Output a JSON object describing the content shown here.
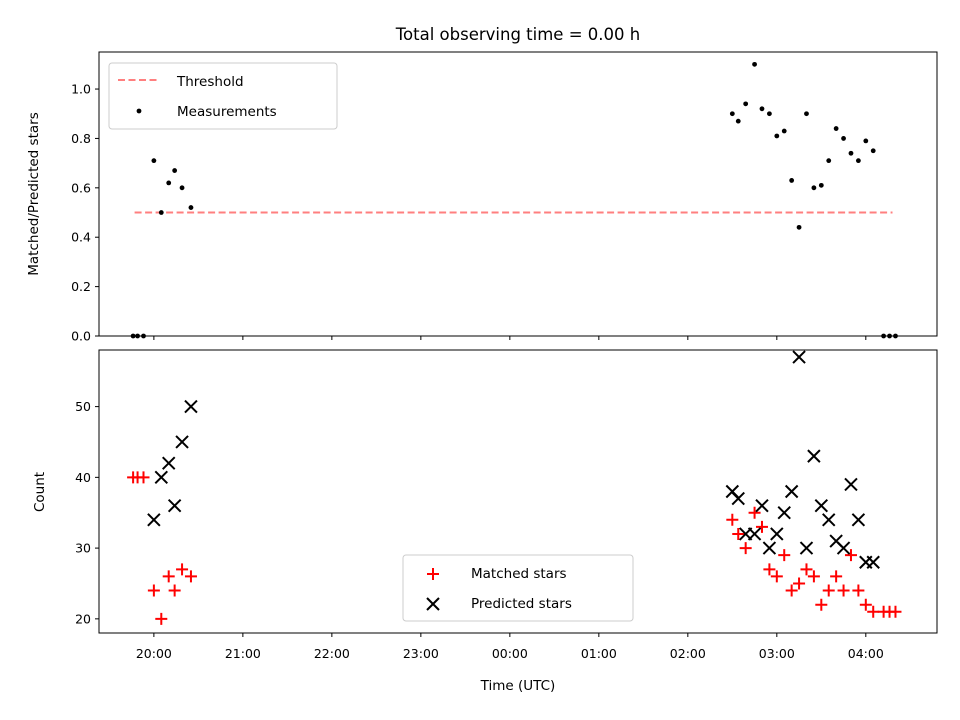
{
  "chart_data": [
    {
      "type": "scatter",
      "title": "Total observing time = 0.00 h",
      "ylabel": "Matched/Predicted stars",
      "xlabel": "",
      "ylim": [
        0,
        1.15
      ],
      "yticks": [
        "0.0",
        "0.2",
        "0.4",
        "0.6",
        "0.8",
        "1.0"
      ],
      "yticks_values": [
        0,
        0.2,
        0.4,
        0.6,
        0.8,
        1.0
      ],
      "x_axis": {
        "type": "time",
        "start": "19:23",
        "end": "04:48"
      },
      "legend": {
        "placement": "top-left",
        "entries": [
          {
            "label": "Threshold",
            "style": "dashed",
            "color": "#ff7f7f"
          },
          {
            "label": "Measurements",
            "style": "dot",
            "color": "#000000"
          }
        ]
      },
      "series": [
        {
          "name": "Threshold",
          "kind": "line",
          "color": "#ff7f7f",
          "points": [
            {
              "x": "19:47",
              "y": 0.5
            },
            {
              "x": "04:18",
              "y": 0.5
            }
          ]
        },
        {
          "name": "Measurements",
          "kind": "dots",
          "color": "#000000",
          "points": [
            {
              "x": "19:46",
              "y": 0.0
            },
            {
              "x": "19:49",
              "y": 0.0
            },
            {
              "x": "19:53",
              "y": 0.0
            },
            {
              "x": "20:00",
              "y": 0.71
            },
            {
              "x": "20:05",
              "y": 0.5
            },
            {
              "x": "20:10",
              "y": 0.62
            },
            {
              "x": "20:14",
              "y": 0.67
            },
            {
              "x": "20:19",
              "y": 0.6
            },
            {
              "x": "20:25",
              "y": 0.52
            },
            {
              "x": "02:30",
              "y": 0.9
            },
            {
              "x": "02:34",
              "y": 0.87
            },
            {
              "x": "02:39",
              "y": 0.94
            },
            {
              "x": "02:45",
              "y": 1.1
            },
            {
              "x": "02:50",
              "y": 0.92
            },
            {
              "x": "02:55",
              "y": 0.9
            },
            {
              "x": "03:00",
              "y": 0.81
            },
            {
              "x": "03:05",
              "y": 0.83
            },
            {
              "x": "03:10",
              "y": 0.63
            },
            {
              "x": "03:15",
              "y": 0.44
            },
            {
              "x": "03:20",
              "y": 0.9
            },
            {
              "x": "03:25",
              "y": 0.6
            },
            {
              "x": "03:30",
              "y": 0.61
            },
            {
              "x": "03:35",
              "y": 0.71
            },
            {
              "x": "03:40",
              "y": 0.84
            },
            {
              "x": "03:45",
              "y": 0.8
            },
            {
              "x": "03:50",
              "y": 0.74
            },
            {
              "x": "03:55",
              "y": 0.71
            },
            {
              "x": "04:00",
              "y": 0.79
            },
            {
              "x": "04:05",
              "y": 0.75
            },
            {
              "x": "04:12",
              "y": 0.0
            },
            {
              "x": "04:16",
              "y": 0.0
            },
            {
              "x": "04:20",
              "y": 0.0
            }
          ]
        }
      ]
    },
    {
      "type": "scatter",
      "title": "",
      "ylabel": "Count",
      "xlabel": "Time (UTC)",
      "ylim": [
        18,
        58
      ],
      "yticks": [
        "20",
        "30",
        "40",
        "50"
      ],
      "yticks_values": [
        20,
        30,
        40,
        50
      ],
      "xticks": [
        "20:00",
        "21:00",
        "22:00",
        "23:00",
        "00:00",
        "01:00",
        "02:00",
        "03:00",
        "04:00"
      ],
      "x_axis": {
        "type": "time",
        "start": "19:23",
        "end": "04:48"
      },
      "legend": {
        "placement": "lower-center",
        "entries": [
          {
            "label": "Matched stars",
            "style": "plus",
            "color": "#ff0000"
          },
          {
            "label": "Predicted stars",
            "style": "x",
            "color": "#000000"
          }
        ]
      },
      "series": [
        {
          "name": "Matched stars",
          "kind": "plus",
          "color": "#ff0000",
          "points": [
            {
              "x": "19:46",
              "y": 40
            },
            {
              "x": "19:49",
              "y": 40
            },
            {
              "x": "19:53",
              "y": 40
            },
            {
              "x": "20:00",
              "y": 24
            },
            {
              "x": "20:05",
              "y": 20
            },
            {
              "x": "20:10",
              "y": 26
            },
            {
              "x": "20:14",
              "y": 24
            },
            {
              "x": "20:19",
              "y": 27
            },
            {
              "x": "20:25",
              "y": 26
            },
            {
              "x": "02:30",
              "y": 34
            },
            {
              "x": "02:34",
              "y": 32
            },
            {
              "x": "02:39",
              "y": 30
            },
            {
              "x": "02:45",
              "y": 35
            },
            {
              "x": "02:50",
              "y": 33
            },
            {
              "x": "02:55",
              "y": 27
            },
            {
              "x": "03:00",
              "y": 26
            },
            {
              "x": "03:05",
              "y": 29
            },
            {
              "x": "03:10",
              "y": 24
            },
            {
              "x": "03:15",
              "y": 25
            },
            {
              "x": "03:20",
              "y": 27
            },
            {
              "x": "03:25",
              "y": 26
            },
            {
              "x": "03:30",
              "y": 22
            },
            {
              "x": "03:35",
              "y": 24
            },
            {
              "x": "03:40",
              "y": 26
            },
            {
              "x": "03:45",
              "y": 24
            },
            {
              "x": "03:50",
              "y": 29
            },
            {
              "x": "03:55",
              "y": 24
            },
            {
              "x": "04:00",
              "y": 22
            },
            {
              "x": "04:05",
              "y": 21
            },
            {
              "x": "04:12",
              "y": 21
            },
            {
              "x": "04:16",
              "y": 21
            },
            {
              "x": "04:20",
              "y": 21
            }
          ]
        },
        {
          "name": "Predicted stars",
          "kind": "x",
          "color": "#000000",
          "points": [
            {
              "x": "20:00",
              "y": 34
            },
            {
              "x": "20:05",
              "y": 40
            },
            {
              "x": "20:10",
              "y": 42
            },
            {
              "x": "20:14",
              "y": 36
            },
            {
              "x": "20:19",
              "y": 45
            },
            {
              "x": "20:25",
              "y": 50
            },
            {
              "x": "02:30",
              "y": 38
            },
            {
              "x": "02:34",
              "y": 37
            },
            {
              "x": "02:39",
              "y": 32
            },
            {
              "x": "02:45",
              "y": 32
            },
            {
              "x": "02:50",
              "y": 36
            },
            {
              "x": "02:55",
              "y": 30
            },
            {
              "x": "03:00",
              "y": 32
            },
            {
              "x": "03:05",
              "y": 35
            },
            {
              "x": "03:10",
              "y": 38
            },
            {
              "x": "03:15",
              "y": 57
            },
            {
              "x": "03:20",
              "y": 30
            },
            {
              "x": "03:25",
              "y": 43
            },
            {
              "x": "03:30",
              "y": 36
            },
            {
              "x": "03:35",
              "y": 34
            },
            {
              "x": "03:40",
              "y": 31
            },
            {
              "x": "03:45",
              "y": 30
            },
            {
              "x": "03:50",
              "y": 39
            },
            {
              "x": "03:55",
              "y": 34
            },
            {
              "x": "04:00",
              "y": 28
            },
            {
              "x": "04:05",
              "y": 28
            }
          ]
        }
      ]
    }
  ]
}
